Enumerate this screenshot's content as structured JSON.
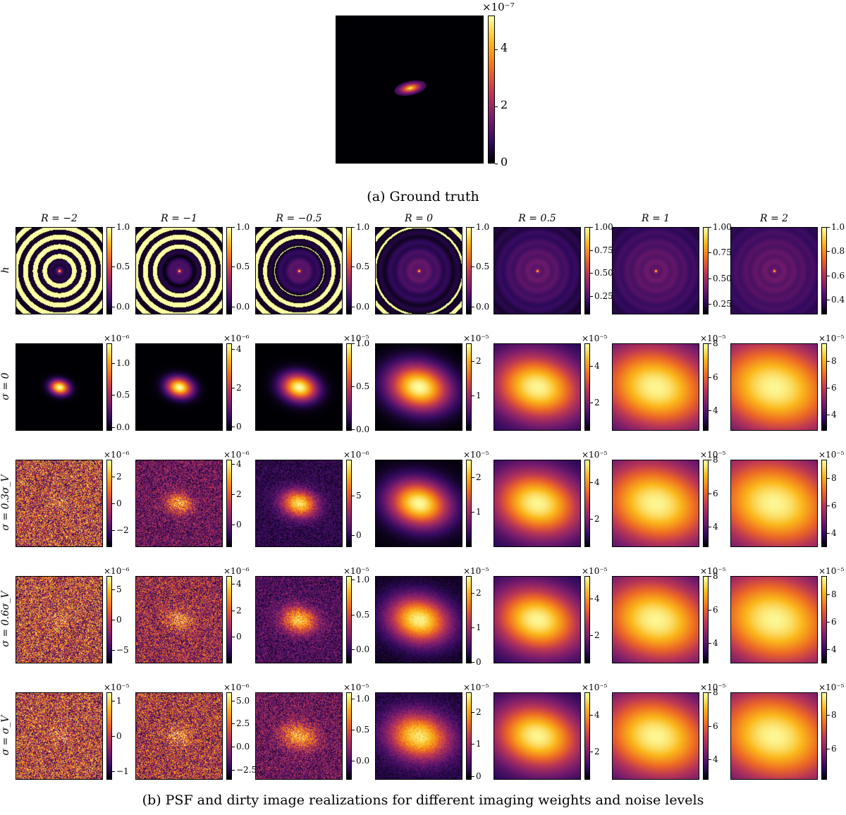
{
  "ground_truth": {
    "multiplier": "×10⁻⁷",
    "ticks": [
      "4",
      "2",
      "0"
    ],
    "tick_values": [
      4,
      2,
      0
    ],
    "range": [
      0,
      5.2
    ]
  },
  "caption_a": "(a) Ground truth",
  "caption_b": "(b) PSF and dirty image realizations for different imaging weights and noise levels",
  "columns": [
    "R = −2",
    "R = −1",
    "R = −0.5",
    "R = 0",
    "R = 0.5",
    "R = 1",
    "R = 2"
  ],
  "rows": [
    "h",
    "σ = 0",
    "σ = 0.3σ_V",
    "σ = 0.6σ_V",
    "σ = σ_V"
  ],
  "grid": [
    [
      {
        "mult": "",
        "ticks": [
          "1.0",
          "0.5",
          "0.0"
        ],
        "vals": [
          1.0,
          0.5,
          0.0
        ],
        "range": [
          -0.1,
          1.0
        ],
        "kind": "psf",
        "spread": 2
      },
      {
        "mult": "",
        "ticks": [
          "1.0",
          "0.5",
          "0.0"
        ],
        "vals": [
          1.0,
          0.5,
          0.0
        ],
        "range": [
          -0.1,
          1.0
        ],
        "kind": "psf",
        "spread": 4
      },
      {
        "mult": "",
        "ticks": [
          "1.0",
          "0.5",
          "0.0"
        ],
        "vals": [
          1.0,
          0.5,
          0.0
        ],
        "range": [
          -0.1,
          1.0
        ],
        "kind": "psf",
        "spread": 6
      },
      {
        "mult": "",
        "ticks": [
          "1.0",
          "0.5",
          "0.0"
        ],
        "vals": [
          1.0,
          0.5,
          0.0
        ],
        "range": [
          -0.1,
          1.0
        ],
        "kind": "psf",
        "spread": 9
      },
      {
        "mult": "",
        "ticks": [
          "1.00",
          "0.75",
          "0.50",
          "0.25"
        ],
        "vals": [
          1.0,
          0.75,
          0.5,
          0.25
        ],
        "range": [
          0.05,
          1.0
        ],
        "kind": "psf",
        "spread": 14
      },
      {
        "mult": "",
        "ticks": [
          "1.00",
          "0.75",
          "0.50",
          "0.25"
        ],
        "vals": [
          1.0,
          0.75,
          0.5,
          0.25
        ],
        "range": [
          0.15,
          1.0
        ],
        "kind": "psf",
        "spread": 17
      },
      {
        "mult": "",
        "ticks": [
          "1.0",
          "0.8",
          "0.6",
          "0.4"
        ],
        "vals": [
          1.0,
          0.8,
          0.6,
          0.4
        ],
        "range": [
          0.28,
          1.0
        ],
        "kind": "psf",
        "spread": 19
      }
    ],
    [
      {
        "mult": "×10⁻⁶",
        "ticks": [
          "1.0",
          "0.5",
          "0.0"
        ],
        "vals": [
          1.0,
          0.5,
          0.0
        ],
        "range": [
          -0.05,
          1.3
        ],
        "kind": "dirty",
        "spread": 8,
        "noise": 0
      },
      {
        "mult": "×10⁻⁶",
        "ticks": [
          "4",
          "2",
          "0"
        ],
        "vals": [
          4,
          2,
          0
        ],
        "range": [
          -0.2,
          4.3
        ],
        "kind": "dirty",
        "spread": 11,
        "noise": 0
      },
      {
        "mult": "×10⁻⁵",
        "ticks": [
          "1.0",
          "0.5",
          "0.0"
        ],
        "vals": [
          1.0,
          0.5,
          0.0
        ],
        "range": [
          -0.02,
          1.0
        ],
        "kind": "dirty",
        "spread": 15,
        "noise": 0
      },
      {
        "mult": "×10⁻⁵",
        "ticks": [
          "2",
          "1"
        ],
        "vals": [
          2,
          1
        ],
        "range": [
          0,
          2.5
        ],
        "kind": "dirty",
        "spread": 26,
        "noise": 0
      },
      {
        "mult": "×10⁻⁵",
        "ticks": [
          "4",
          "2"
        ],
        "vals": [
          4,
          2
        ],
        "range": [
          0.5,
          5.2
        ],
        "kind": "dirty",
        "spread": 38,
        "noise": 0
      },
      {
        "mult": "×10⁻⁵",
        "ticks": [
          "8",
          "6",
          "4"
        ],
        "vals": [
          8,
          6,
          4
        ],
        "range": [
          2.8,
          8.0
        ],
        "kind": "dirty",
        "spread": 50,
        "noise": 0
      },
      {
        "mult": "×10⁻⁵",
        "ticks": [
          "8",
          "6",
          "4"
        ],
        "vals": [
          8,
          6,
          4
        ],
        "range": [
          2.8,
          9.3
        ],
        "kind": "dirty",
        "spread": 56,
        "noise": 0
      }
    ],
    [
      {
        "mult": "×10⁻⁶",
        "ticks": [
          "2",
          "0",
          "−2"
        ],
        "vals": [
          2,
          0,
          -2
        ],
        "range": [
          -3.3,
          3.3
        ],
        "kind": "noisy",
        "spread": 8,
        "noise": 1
      },
      {
        "mult": "×10⁻⁶",
        "ticks": [
          "4",
          "2",
          "0"
        ],
        "vals": [
          4,
          2,
          0
        ],
        "range": [
          -1.5,
          4.3
        ],
        "kind": "noisy",
        "spread": 11,
        "noise": 0.55
      },
      {
        "mult": "×10⁻⁶",
        "ticks": [
          "5",
          "0"
        ],
        "vals": [
          5,
          0
        ],
        "range": [
          -1.5,
          9.5
        ],
        "kind": "noisy",
        "spread": 15,
        "noise": 0.25
      },
      {
        "mult": "×10⁻⁵",
        "ticks": [
          "2",
          "1"
        ],
        "vals": [
          2,
          1
        ],
        "range": [
          0,
          2.5
        ],
        "kind": "dirty",
        "spread": 26,
        "noise": 0.03
      },
      {
        "mult": "×10⁻⁵",
        "ticks": [
          "4",
          "2"
        ],
        "vals": [
          4,
          2
        ],
        "range": [
          0.5,
          5.2
        ],
        "kind": "dirty",
        "spread": 38,
        "noise": 0
      },
      {
        "mult": "×10⁻⁵",
        "ticks": [
          "8",
          "6",
          "4"
        ],
        "vals": [
          8,
          6,
          4
        ],
        "range": [
          2.8,
          8.0
        ],
        "kind": "dirty",
        "spread": 50,
        "noise": 0
      },
      {
        "mult": "×10⁻⁵",
        "ticks": [
          "8",
          "6",
          "4"
        ],
        "vals": [
          8,
          6,
          4
        ],
        "range": [
          3.0,
          9.3
        ],
        "kind": "dirty",
        "spread": 56,
        "noise": 0
      }
    ],
    [
      {
        "mult": "×10⁻⁶",
        "ticks": [
          "5",
          "0",
          "−5"
        ],
        "vals": [
          5,
          0,
          -5
        ],
        "range": [
          -7.2,
          7.2
        ],
        "kind": "noisy",
        "spread": 8,
        "noise": 1
      },
      {
        "mult": "×10⁻⁶",
        "ticks": [
          "4",
          "2",
          "0"
        ],
        "vals": [
          4,
          2,
          0
        ],
        "range": [
          -2,
          4.6
        ],
        "kind": "noisy",
        "spread": 11,
        "noise": 0.8
      },
      {
        "mult": "×10⁻⁵",
        "ticks": [
          "1.0",
          "0.5",
          "0.0"
        ],
        "vals": [
          1.0,
          0.5,
          0.0
        ],
        "range": [
          -0.2,
          1.05
        ],
        "kind": "noisy",
        "spread": 15,
        "noise": 0.4
      },
      {
        "mult": "×10⁻⁵",
        "ticks": [
          "2",
          "1",
          "0"
        ],
        "vals": [
          2,
          1,
          0
        ],
        "range": [
          -0.05,
          2.5
        ],
        "kind": "noisy",
        "spread": 26,
        "noise": 0.1
      },
      {
        "mult": "×10⁻⁵",
        "ticks": [
          "4",
          "2"
        ],
        "vals": [
          4,
          2
        ],
        "range": [
          0.5,
          5.2
        ],
        "kind": "dirty",
        "spread": 38,
        "noise": 0
      },
      {
        "mult": "×10⁻⁵",
        "ticks": [
          "8",
          "6",
          "4"
        ],
        "vals": [
          8,
          6,
          4
        ],
        "range": [
          2.8,
          8.0
        ],
        "kind": "dirty",
        "spread": 50,
        "noise": 0
      },
      {
        "mult": "×10⁻⁵",
        "ticks": [
          "8",
          "6",
          "4"
        ],
        "vals": [
          8,
          6,
          4
        ],
        "range": [
          3.0,
          9.3
        ],
        "kind": "dirty",
        "spread": 56,
        "noise": 0
      }
    ],
    [
      {
        "mult": "×10⁻⁵",
        "ticks": [
          "1",
          "0",
          "−1"
        ],
        "vals": [
          1,
          0,
          -1
        ],
        "range": [
          -1.25,
          1.25
        ],
        "kind": "noisy",
        "spread": 8,
        "noise": 1
      },
      {
        "mult": "×10⁻⁶",
        "ticks": [
          "5.0",
          "2.5",
          "0.0",
          "−2.5"
        ],
        "vals": [
          5.0,
          2.5,
          0.0,
          -2.5
        ],
        "range": [
          -3.6,
          5.9
        ],
        "kind": "noisy",
        "spread": 11,
        "noise": 0.9
      },
      {
        "mult": "×10⁻⁵",
        "ticks": [
          "1.0",
          "0.5",
          "0.0"
        ],
        "vals": [
          1.0,
          0.5,
          0.0
        ],
        "range": [
          -0.3,
          1.1
        ],
        "kind": "noisy",
        "spread": 15,
        "noise": 0.55
      },
      {
        "mult": "×10⁻⁵",
        "ticks": [
          "2",
          "1",
          "0"
        ],
        "vals": [
          2,
          1,
          0
        ],
        "range": [
          -0.1,
          2.6
        ],
        "kind": "noisy",
        "spread": 26,
        "noise": 0.18
      },
      {
        "mult": "×10⁻⁵",
        "ticks": [
          "4",
          "2"
        ],
        "vals": [
          4,
          2
        ],
        "range": [
          0.5,
          5.2
        ],
        "kind": "dirty",
        "spread": 38,
        "noise": 0.01
      },
      {
        "mult": "×10⁻⁵",
        "ticks": [
          "8",
          "6",
          "4"
        ],
        "vals": [
          8,
          6,
          4
        ],
        "range": [
          2.8,
          8.0
        ],
        "kind": "dirty",
        "spread": 50,
        "noise": 0
      },
      {
        "mult": "×10⁻⁵",
        "ticks": [
          "8",
          "6"
        ],
        "vals": [
          8,
          6
        ],
        "range": [
          4.2,
          9.3
        ],
        "kind": "dirty",
        "spread": 56,
        "noise": 0
      }
    ]
  ]
}
